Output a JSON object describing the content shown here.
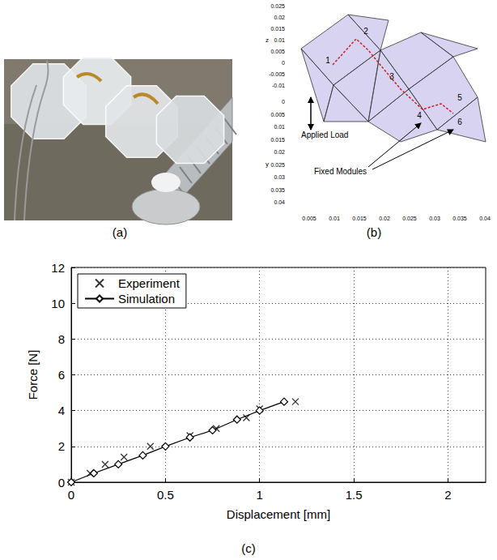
{
  "panels": [
    {
      "label": "(a)"
    },
    {
      "label": "(b)",
      "axis_labels": {
        "z": "z",
        "y": "y"
      },
      "zticks": [
        0.025,
        0.02,
        0.015,
        0.01,
        0.005,
        0,
        -0.005,
        -0.01
      ],
      "yticks": [
        0,
        0.005,
        0.01,
        0.015,
        0.02,
        0.025,
        0.03,
        0.035,
        0.04
      ],
      "xticks": [
        0.005,
        0.01,
        0.015,
        0.02,
        0.025,
        0.03,
        0.035,
        0.04
      ],
      "nodes": [
        "1",
        "2",
        "3",
        "4",
        "5",
        "6"
      ],
      "annotations": [
        "Applied Load",
        "Fixed Modules"
      ]
    },
    {
      "label": "(c)"
    }
  ],
  "chart_data": {
    "type": "line",
    "xlabel": "Displacement [mm]",
    "ylabel": "Force [N]",
    "xlim": [
      0,
      2.2
    ],
    "xticks": [
      0,
      0.5,
      1,
      1.5,
      2
    ],
    "ylim": [
      0,
      12
    ],
    "yticks": [
      0,
      2,
      4,
      6,
      8,
      10,
      12
    ],
    "grid": true,
    "legend": "upper left",
    "series": [
      {
        "name": "Experiment",
        "type": "scatter",
        "marker": "x",
        "color": "#000000",
        "x": [
          0,
          0.1,
          0.18,
          0.28,
          0.42,
          0.63,
          0.77,
          0.93,
          1.0,
          1.19
        ],
        "values": [
          0,
          0.5,
          1.0,
          1.4,
          2.0,
          2.6,
          3.0,
          3.6,
          4.1,
          4.5
        ]
      },
      {
        "name": "Simulation",
        "type": "line",
        "marker": "diamond",
        "line_style": "solid",
        "color": "#000000",
        "x": [
          0,
          0.12,
          0.25,
          0.38,
          0.5,
          0.63,
          0.75,
          0.88,
          1.0,
          1.13
        ],
        "values": [
          0,
          0.5,
          1.0,
          1.5,
          2.0,
          2.5,
          2.9,
          3.5,
          4.0,
          4.5
        ]
      }
    ]
  }
}
